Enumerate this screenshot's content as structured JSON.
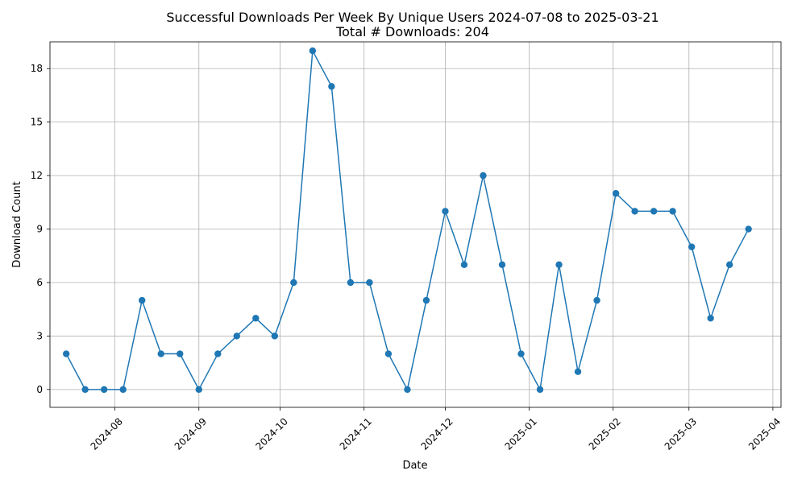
{
  "chart_data": {
    "type": "line",
    "title": "Successful Downloads Per Week By Unique Users 2024-07-08 to 2025-03-21",
    "subtitle": "Total # Downloads: 204",
    "xlabel": "Date",
    "ylabel": "Download Count",
    "grid": true,
    "line_color": "#1f77b4",
    "xlim": [
      "2024-07-08",
      "2025-04-04"
    ],
    "ylim": [
      -1,
      19.5
    ],
    "yticks": [
      0,
      3,
      6,
      9,
      12,
      15,
      18
    ],
    "xticks": [
      "2024-08-01",
      "2024-09-01",
      "2024-10-01",
      "2024-11-01",
      "2024-12-01",
      "2025-01-01",
      "2025-02-01",
      "2025-03-01",
      "2025-04-01"
    ],
    "xtick_labels": [
      "2024-08",
      "2024-09",
      "2024-10",
      "2024-11",
      "2024-12",
      "2025-01",
      "2025-02",
      "2025-03",
      "2025-04"
    ],
    "x": [
      "2024-07-14",
      "2024-07-21",
      "2024-07-28",
      "2024-08-04",
      "2024-08-11",
      "2024-08-18",
      "2024-08-25",
      "2024-09-01",
      "2024-09-08",
      "2024-09-15",
      "2024-09-22",
      "2024-09-29",
      "2024-10-06",
      "2024-10-13",
      "2024-10-20",
      "2024-10-27",
      "2024-11-03",
      "2024-11-10",
      "2024-11-17",
      "2024-11-24",
      "2024-12-01",
      "2024-12-08",
      "2024-12-15",
      "2024-12-22",
      "2024-12-29",
      "2025-01-05",
      "2025-01-12",
      "2025-01-19",
      "2025-01-26",
      "2025-02-02",
      "2025-02-09",
      "2025-02-16",
      "2025-02-23",
      "2025-03-02",
      "2025-03-09",
      "2025-03-16",
      "2025-03-23"
    ],
    "y": [
      2,
      0,
      0,
      0,
      5,
      2,
      2,
      0,
      2,
      3,
      4,
      3,
      6,
      19,
      17,
      6,
      6,
      2,
      0,
      5,
      10,
      7,
      12,
      7,
      2,
      0,
      7,
      1,
      5,
      11,
      10,
      10,
      10,
      8,
      4,
      7,
      9
    ]
  }
}
